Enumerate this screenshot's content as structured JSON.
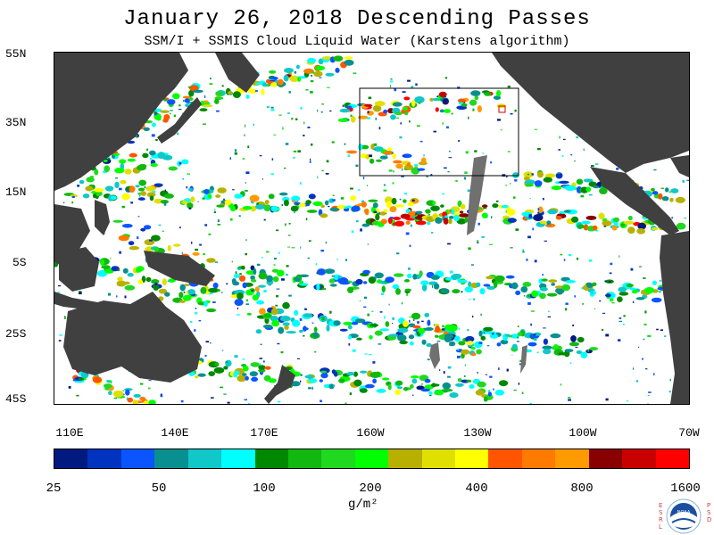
{
  "title": "January 26, 2018  Descending Passes",
  "subtitle": "SSM/I + SSMIS Cloud Liquid Water (Karstens algorithm)",
  "lat_labels": [
    "55N",
    "35N",
    "15N",
    "5S",
    "25S",
    "45S"
  ],
  "lon_labels": [
    "110E",
    "140E",
    "170E",
    "160W",
    "130W",
    "100W",
    "70W"
  ],
  "colorbar": {
    "labels": [
      "25",
      "50",
      "100",
      "200",
      "400",
      "800",
      "1600"
    ],
    "unit": "g/m²",
    "colors": [
      "#001a80",
      "#0033c0",
      "#0a55ff",
      "#089090",
      "#10c8c8",
      "#00ffff",
      "#008800",
      "#10b810",
      "#20d820",
      "#00ff00",
      "#b8b000",
      "#e0e000",
      "#ffff00",
      "#ff5500",
      "#ff7a00",
      "#ff9a00",
      "#880000",
      "#c80000",
      "#ff0000"
    ]
  },
  "logo": {
    "icon": "noaa-logo-icon",
    "left_text": "ESRL",
    "right_text": "PSD",
    "center_text": "NOAA"
  },
  "map": {
    "land_color": "#404040",
    "no_data_color": "#707070",
    "ocean_clear_color": "#ffffff"
  }
}
